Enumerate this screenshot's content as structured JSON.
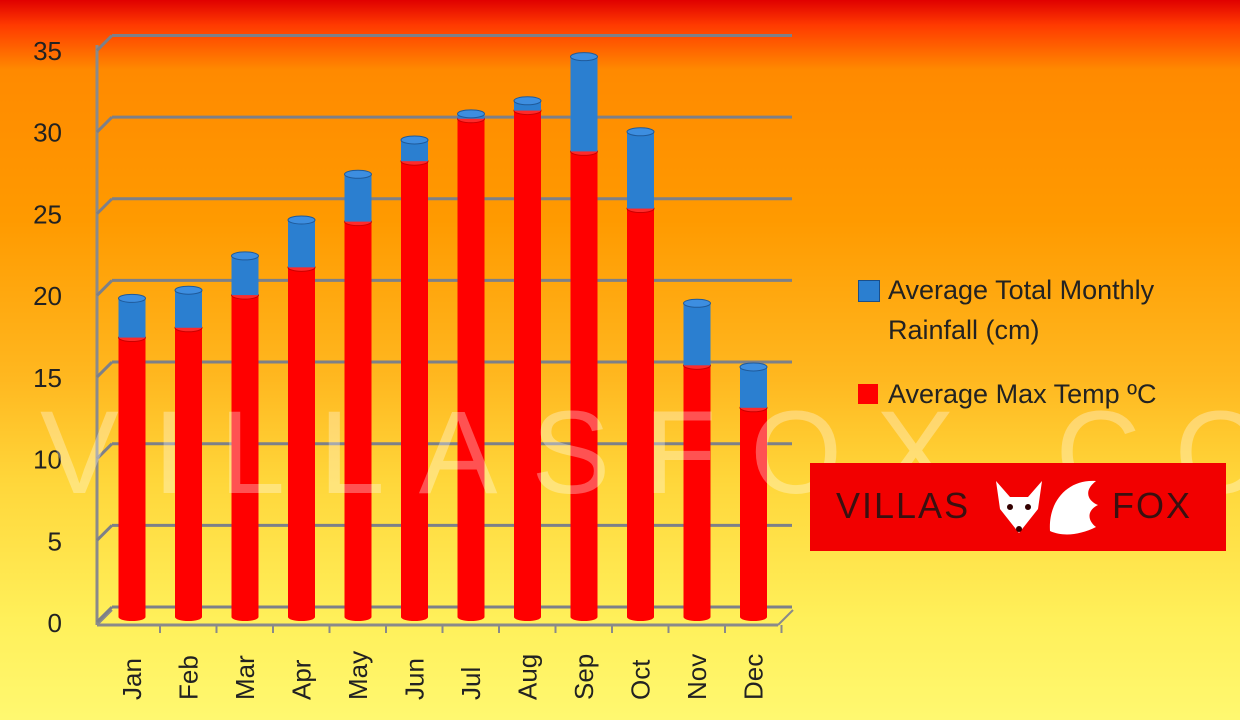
{
  "chart_data": {
    "type": "bar",
    "stacked": true,
    "style": "3d-cylinder",
    "categories": [
      "Jan",
      "Feb",
      "Mar",
      "Apr",
      "May",
      "Jun",
      "Jul",
      "Aug",
      "Sep",
      "Oct",
      "Nov",
      "Dec"
    ],
    "series": [
      {
        "name": "Average Max Temp ºC",
        "color": "#ff0000",
        "values": [
          16.5,
          17.1,
          19.1,
          20.8,
          23.6,
          27.3,
          29.9,
          30.4,
          27.9,
          24.4,
          14.8,
          12.2
        ]
      },
      {
        "name": "Average Total Monthly Rainfall (cm)",
        "color": "#2b7fd0",
        "values": [
          2.4,
          2.3,
          2.4,
          2.9,
          2.9,
          1.3,
          0.3,
          0.6,
          5.8,
          4.7,
          3.8,
          2.5
        ]
      }
    ],
    "yticks": [
      "0",
      "5",
      "10",
      "15",
      "20",
      "25",
      "30",
      "35"
    ],
    "ylim": [
      0,
      35
    ],
    "grid": true,
    "legend_position": "right",
    "legend": [
      "Average Total Monthly",
      "Rainfall (cm)",
      "Average Max Temp ºC"
    ]
  },
  "logo": {
    "left": "VILLAS",
    "right": "FOX"
  },
  "watermark": "VILLASFOX.COM"
}
